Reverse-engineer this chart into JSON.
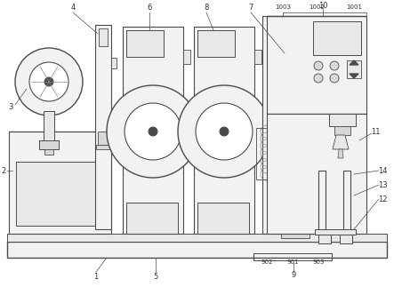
{
  "bg_color": "#ffffff",
  "line_color": "#4a4a4a",
  "fill_light": "#f2f2f2",
  "fill_mid": "#e8e8e8",
  "fill_dark": "#d8d8d8"
}
